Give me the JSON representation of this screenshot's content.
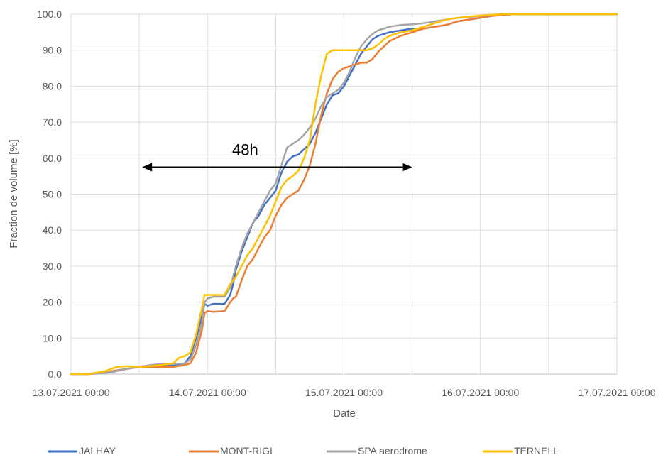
{
  "chart_data": {
    "type": "line",
    "xlabel": "Date",
    "ylabel": "Fraction de volume [%]",
    "x_unit": "hours after 13.07.2021 00:00",
    "xlim": [
      0,
      96
    ],
    "ylim": [
      0,
      100
    ],
    "x_ticks": [
      {
        "x": 0,
        "label": "13.07.2021 00:00"
      },
      {
        "x": 24,
        "label": "14.07.2021 00:00"
      },
      {
        "x": 48,
        "label": "15.07.2021 00:00"
      },
      {
        "x": 72,
        "label": "16.07.2021 00:00"
      },
      {
        "x": 96,
        "label": "17.07.2021 00:00"
      }
    ],
    "y_ticks": [
      "0.0",
      "10.0",
      "20.0",
      "30.0",
      "40.0",
      "50.0",
      "60.0",
      "70.0",
      "80.0",
      "90.0",
      "100.0"
    ],
    "x_gridlines_every_hours": 12,
    "legend_position": "bottom",
    "annotation": {
      "text": "48h",
      "x_start": 12.5,
      "x_end": 60,
      "y": 57.5
    },
    "series": [
      {
        "name": "JALHAY",
        "color": "#4472C4",
        "x": [
          0,
          3,
          6,
          8,
          10,
          12,
          14,
          16,
          18,
          20,
          21,
          22,
          23,
          23.5,
          24,
          25,
          27,
          28,
          28.5,
          29,
          30,
          31,
          32,
          33,
          34,
          35,
          36,
          37,
          38,
          39,
          40,
          41,
          42,
          43,
          44,
          45,
          46,
          47,
          48,
          49,
          50,
          51,
          52,
          53,
          54,
          55,
          56,
          58,
          60,
          62,
          64,
          66,
          68,
          70,
          72,
          74,
          76,
          78,
          80,
          84,
          88,
          92,
          96
        ],
        "y": [
          0,
          0,
          0.5,
          1,
          1.5,
          2,
          2.5,
          2.5,
          2.5,
          3,
          5,
          10,
          16,
          19.5,
          19,
          19.5,
          19.5,
          22,
          25,
          29,
          34,
          38,
          42,
          44,
          47,
          49,
          51,
          56,
          59,
          60.5,
          61,
          62.5,
          64,
          67,
          71,
          75,
          77.5,
          78,
          80,
          83,
          86,
          89,
          91,
          93,
          94,
          94.5,
          95,
          95.5,
          96,
          96,
          96.5,
          97,
          98,
          98.5,
          99,
          99.5,
          99.8,
          100,
          100,
          100,
          100,
          100,
          100
        ]
      },
      {
        "name": "MONT-RIGI",
        "color": "#ED7D31",
        "x": [
          0,
          3,
          6,
          8,
          10,
          12,
          14,
          16,
          18,
          20,
          21,
          22,
          23,
          23.5,
          24,
          25,
          27,
          28,
          28.5,
          29,
          30,
          31,
          32,
          33,
          34,
          35,
          36,
          37,
          38,
          39,
          40,
          41,
          42,
          43,
          44,
          45,
          46,
          47,
          48,
          49,
          50,
          51,
          52,
          53,
          54,
          55,
          56,
          58,
          60,
          62,
          64,
          66,
          68,
          70,
          72,
          74,
          76,
          78,
          80,
          84,
          88,
          92,
          96
        ],
        "y": [
          0,
          0,
          0.5,
          1,
          1.5,
          2,
          2,
          2,
          2,
          2.5,
          3,
          6,
          12,
          17,
          17.5,
          17.3,
          17.5,
          20,
          21,
          21.5,
          26,
          30,
          32,
          35,
          38,
          40,
          44,
          47,
          49,
          50,
          51,
          54,
          58,
          64,
          72,
          78,
          82,
          84,
          85,
          85.5,
          86,
          86.5,
          86.5,
          87.5,
          89.5,
          91,
          92.5,
          94,
          95,
          96,
          96.5,
          97,
          98,
          98.5,
          99,
          99.5,
          99.8,
          100,
          100,
          100,
          100,
          100,
          100
        ]
      },
      {
        "name": "SPA aerodrome",
        "color": "#A5A5A5",
        "x": [
          0,
          3,
          6,
          8,
          10,
          12,
          14,
          16,
          18,
          20,
          21,
          22,
          23,
          23.5,
          24,
          25,
          27,
          28,
          28.5,
          29,
          30,
          31,
          32,
          33,
          34,
          35,
          36,
          37,
          38,
          39,
          40,
          41,
          42,
          43,
          44,
          45,
          46,
          47,
          48,
          49,
          50,
          51,
          52,
          53,
          54,
          55,
          56,
          58,
          60,
          62,
          64,
          66,
          68,
          70,
          72,
          74,
          76,
          78,
          80,
          84,
          88,
          92,
          96
        ],
        "y": [
          0,
          0,
          0.3,
          0.8,
          1.5,
          2,
          2.5,
          2.8,
          2.8,
          3,
          4,
          8,
          14,
          20,
          21,
          21.5,
          21.5,
          24,
          27,
          30,
          35,
          39,
          42,
          45,
          48,
          51,
          53,
          58,
          63,
          64,
          65,
          66.5,
          68.5,
          71,
          74.5,
          77,
          78,
          79,
          81,
          84,
          88,
          91,
          93,
          94.5,
          95.5,
          96,
          96.5,
          97,
          97.2,
          97.5,
          98,
          98.5,
          99,
          99.2,
          99.5,
          99.8,
          100,
          100,
          100,
          100,
          100,
          100,
          100
        ]
      },
      {
        "name": "TERNELL",
        "color": "#FFC000",
        "x": [
          0,
          3,
          6,
          8,
          10,
          12,
          14,
          16,
          18,
          19,
          20,
          21,
          22,
          23,
          23.5,
          24,
          25,
          27,
          28,
          28.5,
          29,
          30,
          31,
          32,
          33,
          34,
          35,
          36,
          37,
          38,
          39,
          40,
          41,
          42,
          43,
          44,
          45,
          46,
          47,
          48,
          49,
          50,
          51,
          52,
          53,
          54,
          55,
          56,
          58,
          60,
          62,
          64,
          66,
          68,
          70,
          72,
          74,
          76,
          78,
          80,
          84,
          88,
          92,
          96
        ],
        "y": [
          0,
          0,
          0.8,
          2,
          2.2,
          2,
          2.2,
          2.5,
          3,
          4.5,
          5,
          6,
          11,
          18,
          22,
          22,
          22,
          22,
          25,
          26,
          27,
          30,
          33,
          35,
          38,
          41,
          44,
          48,
          52,
          54,
          55,
          56.5,
          60,
          65,
          75,
          83,
          89,
          90,
          90,
          90,
          90,
          90,
          90,
          90,
          90.5,
          91.5,
          93,
          94,
          95,
          95.5,
          96.5,
          97.5,
          98.5,
          99,
          99.3,
          99.6,
          99.8,
          100,
          100,
          100,
          100,
          100,
          100,
          100
        ]
      }
    ]
  }
}
